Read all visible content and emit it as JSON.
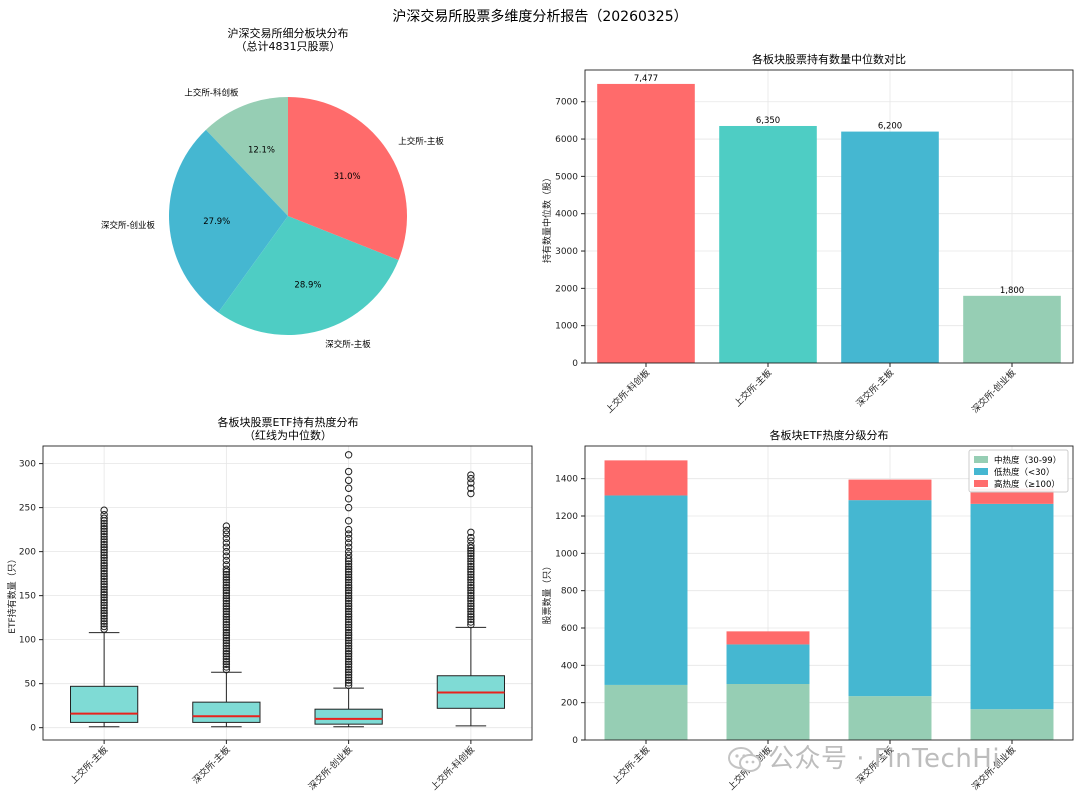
{
  "suptitle": "沪深交易所股票多维度分析报告（20260325）",
  "watermark": "公众号 · FinTechHi",
  "watermark_icon": "wechat-icon",
  "chart_data": [
    {
      "type": "pie",
      "title": "沪深交易所细分板块分布",
      "subtitle": "（总计4831只股票）",
      "labels": [
        "上交所-科创板",
        "深交所-创业板",
        "深交所-主板",
        "上交所-主板"
      ],
      "values": [
        12.1,
        27.9,
        28.9,
        31.0
      ],
      "value_labels": [
        "12.1%",
        "27.9%",
        "28.9%",
        "31.0%"
      ],
      "colors": [
        "#96CEB4",
        "#45B7D1",
        "#4ECDC4",
        "#FF6B6B"
      ]
    },
    {
      "type": "bar",
      "title": "各板块股票持有数量中位数对比",
      "ylabel": "持有数量中位数（股）",
      "categories": [
        "上交所-科创板",
        "上交所-主板",
        "深交所-主板",
        "深交所-创业板"
      ],
      "values": [
        7477,
        6350,
        6200,
        1800
      ],
      "value_labels": [
        "7,477",
        "6,350",
        "6,200",
        "1,800"
      ],
      "colors": [
        "#FF6B6B",
        "#4ECDC4",
        "#45B7D1",
        "#96CEB4"
      ],
      "ylim": [
        0,
        7850
      ],
      "yticks": [
        0,
        1000,
        2000,
        3000,
        4000,
        5000,
        6000,
        7000
      ],
      "grid": true
    },
    {
      "type": "box",
      "title": "各板块股票ETF持有热度分布",
      "subtitle": "（红线为中位数）",
      "ylabel": "ETF持有数量（只）",
      "categories": [
        "上交所-主板",
        "深交所-主板",
        "深交所-创业板",
        "上交所-科创板"
      ],
      "boxes": [
        {
          "whisker_low": 1,
          "q1": 6,
          "median": 16,
          "q3": 47,
          "whisker_high": 108,
          "outliers": [
            112,
            115,
            118,
            121,
            124,
            127,
            130,
            133,
            136,
            139,
            142,
            145,
            148,
            151,
            154,
            157,
            160,
            163,
            166,
            169,
            172,
            175,
            178,
            181,
            184,
            187,
            190,
            193,
            196,
            199,
            202,
            205,
            208,
            211,
            214,
            217,
            220,
            223,
            226,
            229,
            232,
            235,
            238,
            242,
            247
          ]
        },
        {
          "whisker_low": 1,
          "q1": 6,
          "median": 13,
          "q3": 29,
          "whisker_high": 63,
          "outliers": [
            66,
            69,
            72,
            75,
            78,
            81,
            84,
            87,
            90,
            93,
            96,
            99,
            102,
            105,
            108,
            111,
            114,
            117,
            120,
            123,
            126,
            129,
            132,
            135,
            138,
            141,
            144,
            147,
            150,
            153,
            156,
            159,
            162,
            165,
            168,
            171,
            174,
            177,
            180,
            185,
            190,
            195,
            200,
            205,
            210,
            215,
            220,
            224,
            229
          ]
        },
        {
          "whisker_low": 1,
          "q1": 4,
          "median": 10,
          "q3": 21,
          "whisker_high": 45,
          "outliers": [
            48,
            51,
            54,
            57,
            60,
            63,
            66,
            69,
            72,
            75,
            78,
            81,
            84,
            87,
            90,
            93,
            96,
            99,
            102,
            105,
            108,
            111,
            114,
            117,
            120,
            123,
            126,
            129,
            132,
            135,
            138,
            141,
            144,
            147,
            150,
            153,
            156,
            159,
            162,
            165,
            168,
            171,
            174,
            177,
            180,
            183,
            186,
            189,
            192,
            196,
            200,
            205,
            210,
            215,
            220,
            225,
            235,
            250,
            260,
            272,
            281,
            291,
            310
          ]
        },
        {
          "whisker_low": 2,
          "q1": 22,
          "median": 40,
          "q3": 59,
          "whisker_high": 114,
          "outliers": [
            117,
            120,
            123,
            126,
            129,
            132,
            135,
            138,
            141,
            144,
            147,
            150,
            153,
            156,
            159,
            162,
            165,
            168,
            171,
            174,
            177,
            180,
            183,
            186,
            189,
            192,
            195,
            198,
            201,
            204,
            207,
            212,
            216,
            222,
            266,
            272,
            278,
            283,
            287
          ]
        }
      ],
      "box_color": "#7FDBD5",
      "median_color": "#E8231D",
      "ylim": [
        -14,
        320
      ],
      "yticks": [
        0,
        50,
        100,
        150,
        200,
        250,
        300
      ],
      "grid": true
    },
    {
      "type": "stacked_bar",
      "title": "各板块ETF热度分级分布",
      "ylabel": "股票数量（只）",
      "categories": [
        "上交所-主板",
        "上交所-科创板",
        "深交所-主板",
        "深交所-创业板"
      ],
      "series": [
        {
          "name": "中热度（30-99）",
          "values": [
            295,
            300,
            235,
            165
          ],
          "color": "#96CEB4"
        },
        {
          "name": "低热度（<30）",
          "values": [
            1015,
            212,
            1050,
            1100
          ],
          "color": "#45B7D1"
        },
        {
          "name": "高热度（≥100）",
          "values": [
            188,
            70,
            110,
            82
          ],
          "color": "#FF6B6B"
        }
      ],
      "legend_position": "top-right",
      "ylim": [
        0,
        1575
      ],
      "yticks": [
        0,
        200,
        400,
        600,
        800,
        1000,
        1200,
        1400
      ],
      "grid": true
    }
  ]
}
